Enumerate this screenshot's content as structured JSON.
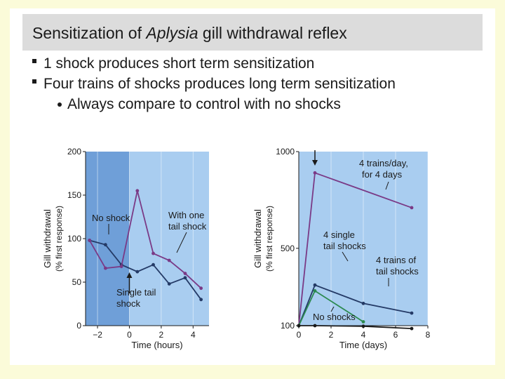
{
  "slide": {
    "title_pre": "Sensitization of ",
    "title_em": "Aplysia",
    "title_post": " gill withdrawal reflex",
    "bullets": [
      "1 shock produces short term sensitization",
      "Four trains of shocks produces long term sensitization"
    ],
    "sub_bullet": "Always compare to control with no shocks"
  },
  "colors": {
    "panel_light": "#a9cdf0",
    "panel_dark": "#6f9fd8",
    "purple": "#7a3a86",
    "navy": "#243a66",
    "green": "#2c8a50",
    "black": "#1a1a1a"
  },
  "chart_data": [
    {
      "type": "line",
      "xlabel": "Time (hours)",
      "ylabel": [
        "Gill withdrawal",
        "(% first response)"
      ],
      "xlim": [
        -2.75,
        5
      ],
      "ylim": [
        0,
        200
      ],
      "xticks": [
        -2,
        0,
        2,
        4
      ],
      "xtick_labels": [
        "−2",
        "0",
        "2",
        "4"
      ],
      "yticks": [
        0,
        50,
        100,
        150,
        200
      ],
      "ytick_labels": [
        "0",
        "50",
        "100",
        "150",
        "200"
      ],
      "shaded_before": 0,
      "event_x": 0,
      "series": [
        {
          "name": "No shock",
          "color": "#243a66",
          "x": [
            -2.5,
            -1.5,
            -0.5,
            0.5,
            1.5,
            2.5,
            3.5,
            4.5
          ],
          "y": [
            98,
            93,
            70,
            62,
            70,
            48,
            55,
            30
          ]
        },
        {
          "name": "With one tail shock",
          "color": "#7a3a86",
          "x": [
            -2.5,
            -1.5,
            -0.5,
            0.5,
            1.5,
            2.5,
            3.5,
            4.5
          ],
          "y": [
            98,
            66,
            68,
            155,
            83,
            75,
            60,
            43
          ]
        }
      ],
      "annotations": [
        "No shock",
        "With one",
        "tail shock",
        "Single tail",
        "shock"
      ]
    },
    {
      "type": "line",
      "xlabel": "Time (days)",
      "ylabel": [
        "Gill withdrawal",
        "(% first response)"
      ],
      "xlim": [
        0,
        8
      ],
      "ylim": [
        100,
        1000
      ],
      "xticks": [
        0,
        2,
        4,
        6,
        8
      ],
      "xtick_labels": [
        "0",
        "2",
        "4",
        "6",
        "8"
      ],
      "yticks": [
        100,
        500,
        1000
      ],
      "ytick_labels": [
        "100",
        "500",
        "1000"
      ],
      "event_x": 1,
      "series": [
        {
          "name": "4 trains/day, for 4 days",
          "color": "#7a3a86",
          "x": [
            0,
            1,
            7
          ],
          "y": [
            100,
            890,
            710
          ]
        },
        {
          "name": "4 trains of tail shocks",
          "color": "#243a66",
          "x": [
            0,
            1,
            4,
            7
          ],
          "y": [
            100,
            310,
            215,
            165
          ]
        },
        {
          "name": "4 single tail shocks",
          "color": "#2c8a50",
          "x": [
            0,
            1,
            4
          ],
          "y": [
            100,
            280,
            120
          ]
        },
        {
          "name": "No shocks",
          "color": "#1a1a1a",
          "x": [
            0,
            1,
            4,
            7
          ],
          "y": [
            100,
            100,
            97,
            85
          ]
        }
      ],
      "annotations": [
        "4 trains/day,",
        "for 4 days",
        "4 single",
        "tail shocks",
        "4 trains of",
        "tail shocks",
        "No shocks"
      ]
    }
  ]
}
